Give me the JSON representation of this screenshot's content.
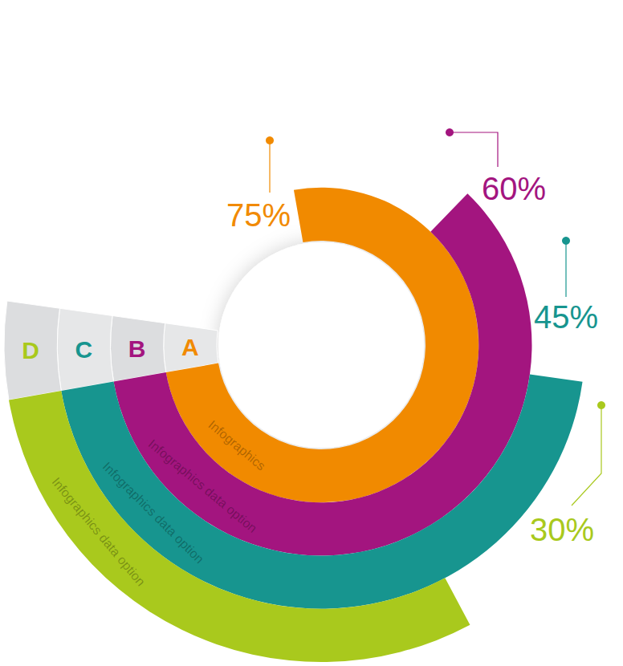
{
  "chart_data": {
    "type": "radialbar",
    "categories": [
      "A",
      "B",
      "C",
      "D"
    ],
    "values": [
      75,
      60,
      45,
      30
    ],
    "value_labels": [
      "75%",
      "60%",
      "45%",
      "30%"
    ],
    "colors": [
      "#f18a00",
      "#a3157f",
      "#17958f",
      "#a9c91d"
    ],
    "annotations": [
      "Infographics",
      "Infographics data option",
      "Infographics data option",
      "Infographics data option"
    ],
    "ylim": [
      0,
      100
    ],
    "tick_labels": false,
    "data_labels": true
  }
}
